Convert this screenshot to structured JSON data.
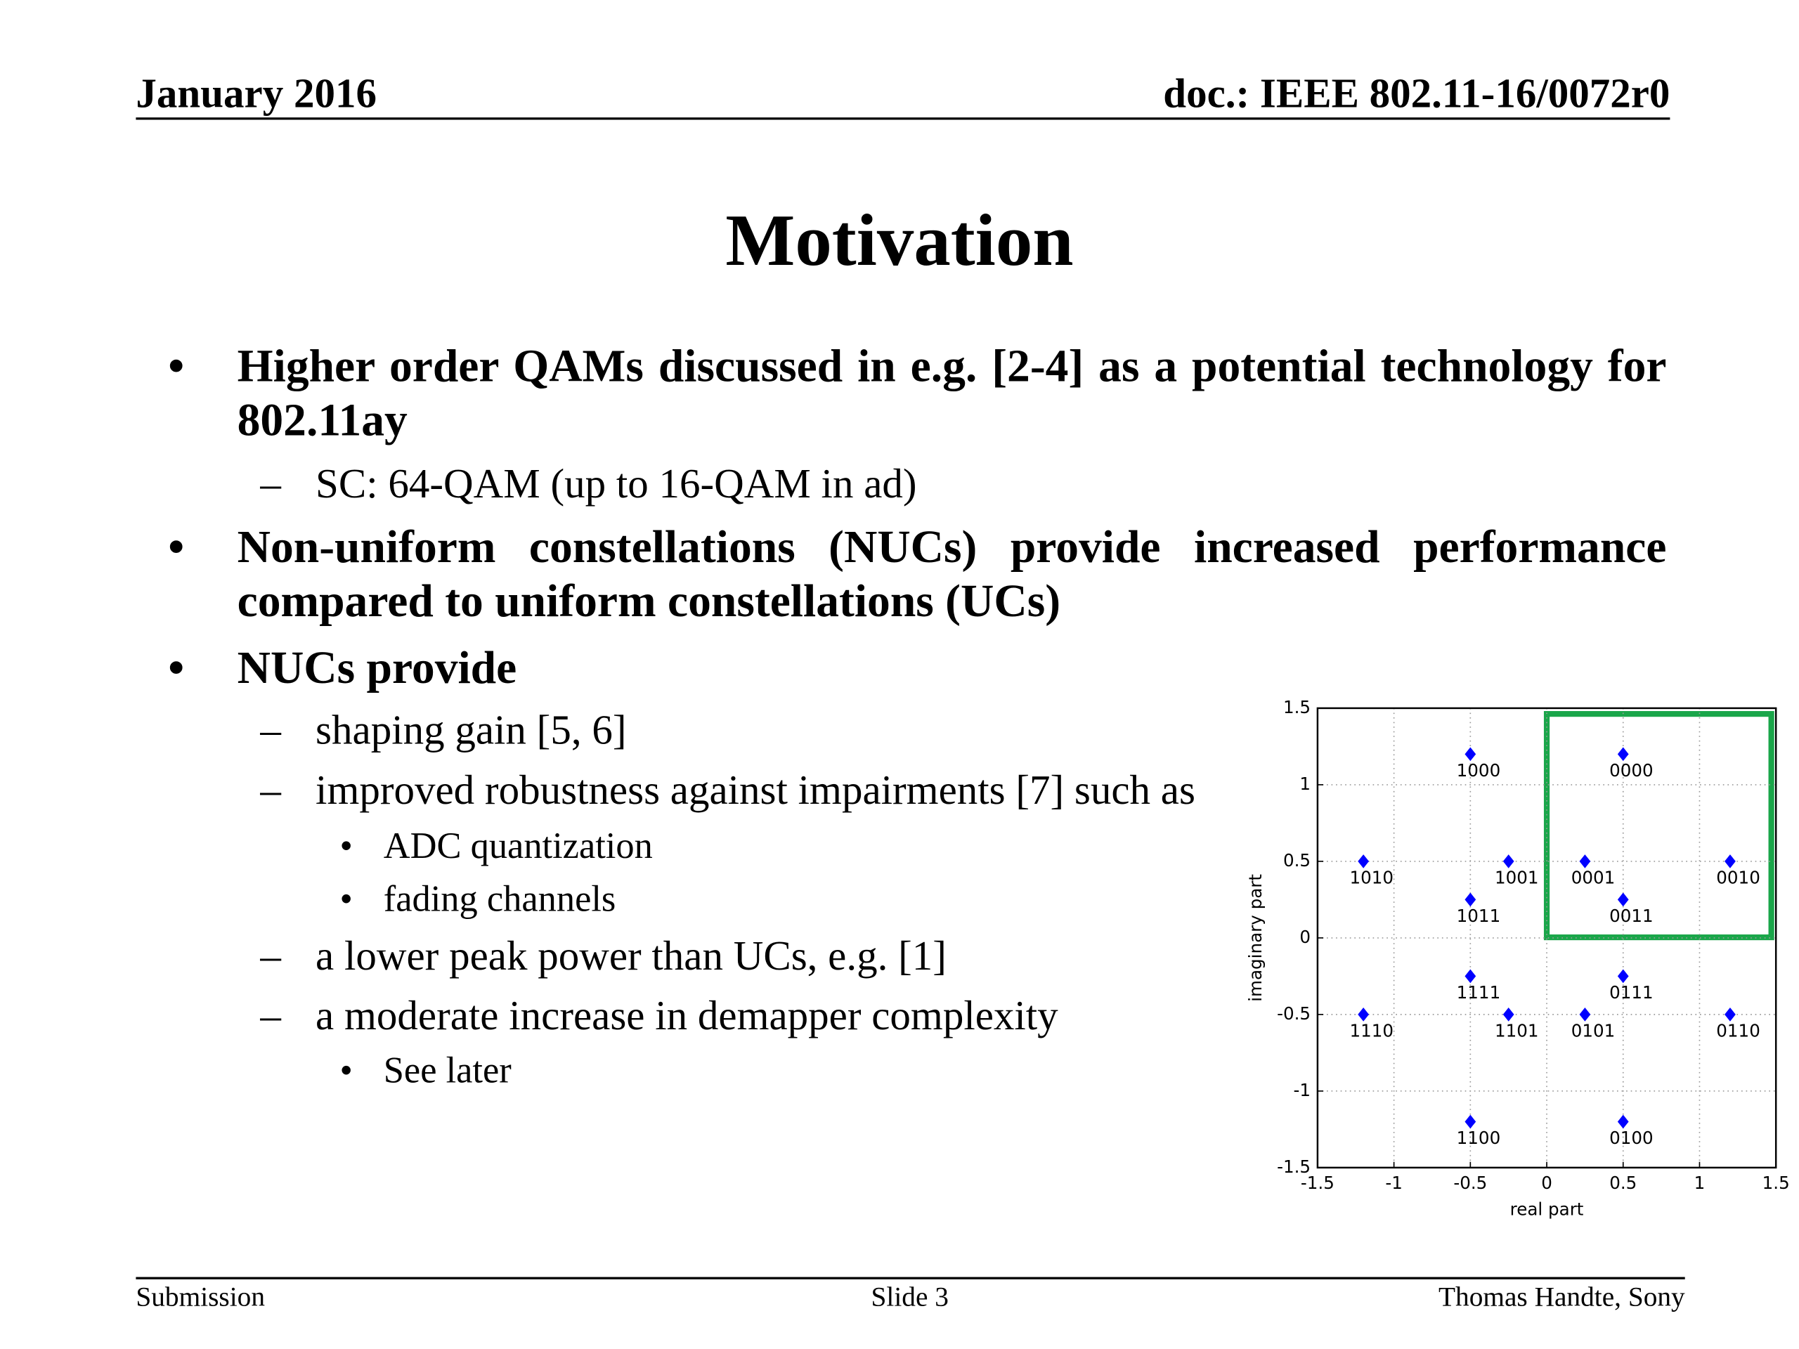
{
  "header": {
    "date": "January 2016",
    "doc": "doc.: IEEE 802.11-16/0072r0"
  },
  "title": "Motivation",
  "bullets": [
    {
      "level": 1,
      "text": "Higher order QAMs discussed in e.g. [2-4] as a potential technology for 802.11ay"
    },
    {
      "level": 2,
      "text": "SC: 64-QAM (up to 16-QAM in ad)"
    },
    {
      "level": 1,
      "text": "Non-uniform constellations (NUCs) provide increased performance compared to uniform constellations (UCs)"
    },
    {
      "level": 1,
      "text": "NUCs provide"
    },
    {
      "level": 2,
      "text": "shaping gain [5, 6]"
    },
    {
      "level": 2,
      "text": "improved robustness against impairments [7] such as"
    },
    {
      "level": 3,
      "text": "ADC quantization"
    },
    {
      "level": 3,
      "text": "fading channels"
    },
    {
      "level": 2,
      "text": "a lower peak power than UCs, e.g. [1]"
    },
    {
      "level": 2,
      "text": "a moderate increase in demapper complexity"
    },
    {
      "level": 3,
      "text": "See later"
    }
  ],
  "chart_data": {
    "type": "scatter",
    "x_label": "real part",
    "y_label": "imaginary part",
    "xlim": [
      -1.5,
      1.5
    ],
    "ylim": [
      -1.5,
      1.5
    ],
    "xticks": [
      -1.5,
      -1,
      -0.5,
      0,
      0.5,
      1,
      1.5
    ],
    "yticks": [
      -1.5,
      -1,
      -0.5,
      0,
      0.5,
      1,
      1.5
    ],
    "grid": true,
    "series": [
      {
        "color": "#0000ff",
        "x": [
          -0.5,
          0.5,
          -1.2,
          -0.25,
          0.25,
          1.2,
          -0.5,
          0.5,
          -0.5,
          0.5,
          -1.2,
          -0.25,
          0.25,
          1.2,
          -0.5,
          0.5
        ],
        "values": [
          1.2,
          1.2,
          0.5,
          0.5,
          0.5,
          0.5,
          0.25,
          0.25,
          -0.25,
          -0.25,
          -0.5,
          -0.5,
          -0.5,
          -0.5,
          -1.2,
          -1.2
        ],
        "labels": [
          "1000",
          "0000",
          "1010",
          "1001",
          "0001",
          "0010",
          "1011",
          "0011",
          "1111",
          "0111",
          "1110",
          "1101",
          "0101",
          "0110",
          "1100",
          "0100"
        ]
      }
    ]
  },
  "footer": {
    "left": "Submission",
    "center": "Slide 3",
    "right": "Thomas Handte, Sony"
  }
}
